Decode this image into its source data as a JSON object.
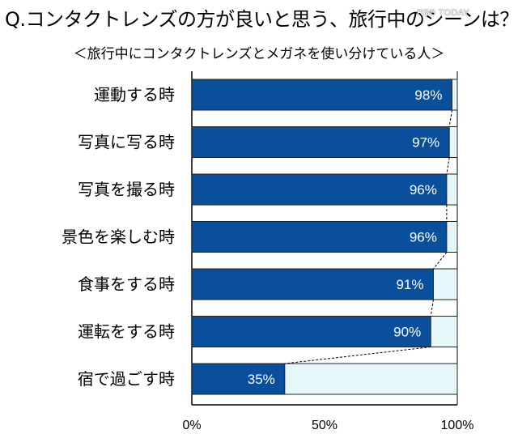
{
  "title": "Q.コンタクトレンズの方が良いと思う、旅行中のシーンは？",
  "watermark": "RBB TODAY",
  "subtitle": "＜旅行中にコンタクトレンズとメガネを使い分けている人＞",
  "chart_data": {
    "type": "bar",
    "orientation": "horizontal",
    "stacked_to_100": true,
    "categories": [
      "運動する時",
      "写真に写る時",
      "写真を撮る時",
      "景色を楽しむ時",
      "食事をする時",
      "運転をする時",
      "宿で過ごす時"
    ],
    "values": [
      98,
      97,
      96,
      96,
      91,
      90,
      35
    ],
    "value_labels": [
      "98%",
      "97%",
      "96%",
      "96%",
      "91%",
      "90%",
      "35%"
    ],
    "xlim": [
      0,
      100
    ],
    "xticks": [
      0,
      50,
      100
    ],
    "xtick_labels": [
      "0%",
      "50%",
      "100%"
    ],
    "connector_lines": "dashed",
    "colors": {
      "value": "#0a4f9c",
      "remainder": "#e6f7fa",
      "border": "#222222"
    }
  }
}
